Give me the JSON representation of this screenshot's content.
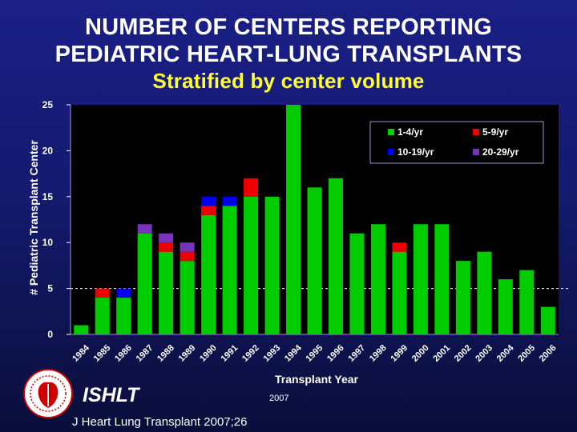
{
  "title_line1": "NUMBER OF CENTERS REPORTING",
  "title_line2": "PEDIATRIC HEART-LUNG TRANSPLANTS",
  "subtitle": "Stratified by center volume",
  "footer": {
    "org": "ISHLT",
    "year": "2007",
    "citation": "J Heart Lung Transplant 2007;26"
  },
  "colors": {
    "c1_4": "#00cc00",
    "c5_9": "#ee0000",
    "c10_19": "#0000ee",
    "c20_29": "#7733bb",
    "logo_red": "#cc0000"
  },
  "chart_data": {
    "type": "bar",
    "stacked": true,
    "xlabel": "Transplant Year",
    "ylabel": "# Pediatric Transplant Center",
    "ylim": [
      0,
      25
    ],
    "yticks": [
      0,
      5,
      10,
      15,
      20,
      25
    ],
    "gridline": 5,
    "legend_position": "top-right",
    "categories": [
      "1984",
      "1985",
      "1986",
      "1987",
      "1988",
      "1989",
      "1990",
      "1991",
      "1992",
      "1993",
      "1994",
      "1995",
      "1996",
      "1997",
      "1998",
      "1999",
      "2000",
      "2001",
      "2002",
      "2003",
      "2004",
      "2005",
      "2006"
    ],
    "series": [
      {
        "name": "1-4/yr",
        "color": "#00cc00",
        "values": [
          1,
          4,
          4,
          11,
          9,
          8,
          13,
          14,
          15,
          15,
          25,
          16,
          17,
          11,
          12,
          9,
          12,
          12,
          8,
          9,
          6,
          7,
          3
        ]
      },
      {
        "name": "5-9/yr",
        "color": "#ee0000",
        "values": [
          0,
          1,
          0,
          0,
          1,
          1,
          1,
          0,
          2,
          0,
          0,
          0,
          0,
          0,
          0,
          1,
          0,
          0,
          0,
          0,
          0,
          0,
          0
        ]
      },
      {
        "name": "10-19/yr",
        "color": "#0000ee",
        "values": [
          0,
          0,
          1,
          0,
          0,
          0,
          1,
          1,
          0,
          0,
          0,
          0,
          0,
          0,
          0,
          0,
          0,
          0,
          0,
          0,
          0,
          0,
          0
        ]
      },
      {
        "name": "20-29/yr",
        "color": "#7733bb",
        "values": [
          0,
          0,
          0,
          1,
          1,
          1,
          0,
          0,
          0,
          0,
          0,
          0,
          0,
          0,
          0,
          0,
          0,
          0,
          0,
          0,
          0,
          0,
          0
        ]
      }
    ]
  }
}
